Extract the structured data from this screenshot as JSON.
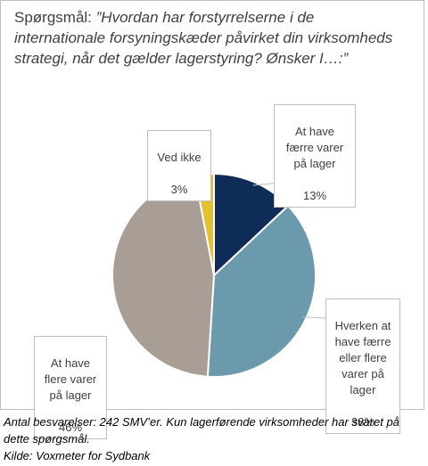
{
  "title": {
    "prefix": "Spørgsmål: ",
    "question": "”Hvordan har forstyrrelserne i de internationale forsyningskæder påvirket din virksomheds strategi, når det gælder lagerstyring? Ønsker I…:”"
  },
  "chart_data": {
    "type": "pie",
    "title": "Spørgsmål: ”Hvordan har forstyrrelserne i de internationale forsyningskæder påvirket din virksomheds strategi, når det gælder lagerstyring? Ønsker I…:”",
    "slices": [
      {
        "label": "At have\nfærre varer\npå lager",
        "value": 13,
        "value_label": "13%",
        "color": "#0e2c57"
      },
      {
        "label": "Hverken at\nhave færre\neller flere\nvarer på\nlager",
        "value": 38,
        "value_label": "38%",
        "color": "#6b9aad"
      },
      {
        "label": "At have\nflere varer\npå lager",
        "value": 46,
        "value_label": "46%",
        "color": "#a89e96"
      },
      {
        "label": "Ved ikke",
        "value": 3,
        "value_label": "3%",
        "color": "#e2c231"
      }
    ],
    "start_angle_deg": 0,
    "direction": "clockwise"
  },
  "footnote": {
    "line1": "Antal besvarelser: 242 SMV’er. Kun lagerførende virksomheder har svaret på dette spørgsmål.",
    "line2": "Kilde: Voxmeter for Sydbank"
  }
}
